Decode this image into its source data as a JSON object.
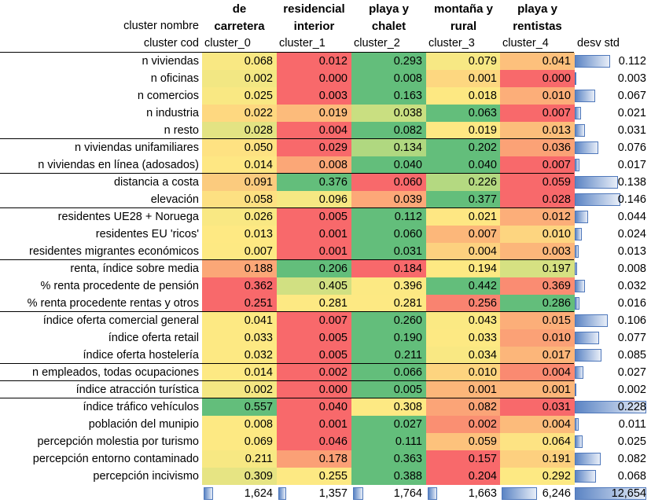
{
  "header": {
    "nombre_label": "cluster nombre",
    "cod_label": "cluster cod",
    "std_label": "desv std"
  },
  "clusters": [
    {
      "name_line1": "de",
      "name_line2": "carretera",
      "code": "cluster_0",
      "count": "1,624"
    },
    {
      "name_line1": "residencial",
      "name_line2": "interior",
      "code": "cluster_1",
      "count": "1,357"
    },
    {
      "name_line1": "playa y",
      "name_line2": "chalet",
      "code": "cluster_2",
      "count": "1,764"
    },
    {
      "name_line1": "montaña y",
      "name_line2": "rural",
      "code": "cluster_3",
      "count": "1,663"
    },
    {
      "name_line1": "playa y",
      "name_line2": "rentistas",
      "code": "cluster_4",
      "count": "6,246"
    }
  ],
  "total_count": "12,654",
  "rows": [
    {
      "label": "n viviendas",
      "values": [
        "0.068",
        "0.012",
        "0.293",
        "0.079",
        "0.041"
      ],
      "colors": [
        "#f9e883",
        "#f8696b",
        "#63be7b",
        "#f7e884",
        "#fdc07c"
      ],
      "std": "0.112",
      "std_frac": 0.49
    },
    {
      "label": "n oficinas",
      "values": [
        "0.002",
        "0.000",
        "0.008",
        "0.001",
        "0.000"
      ],
      "colors": [
        "#f2e783",
        "#f8696b",
        "#63be7b",
        "#fdd780",
        "#f8696b"
      ],
      "std": "0.003",
      "std_frac": 0.01
    },
    {
      "label": "n comercios",
      "values": [
        "0.025",
        "0.003",
        "0.163",
        "0.018",
        "0.010"
      ],
      "colors": [
        "#f9e883",
        "#f8696b",
        "#63be7b",
        "#fde882",
        "#fcae79"
      ],
      "std": "0.067",
      "std_frac": 0.29
    },
    {
      "label": "n industria",
      "values": [
        "0.022",
        "0.019",
        "0.038",
        "0.063",
        "0.007"
      ],
      "colors": [
        "#fed880",
        "#fcbb7b",
        "#c9df81",
        "#63be7b",
        "#f8696b"
      ],
      "std": "0.021",
      "std_frac": 0.09
    },
    {
      "label": "n resto",
      "values": [
        "0.028",
        "0.004",
        "0.082",
        "0.019",
        "0.013"
      ],
      "colors": [
        "#e3e383",
        "#f8696b",
        "#63be7b",
        "#fee883",
        "#fcbe7b"
      ],
      "std": "0.031",
      "std_frac": 0.14
    },
    {
      "label": "n viviendas unifamiliares",
      "values": [
        "0.050",
        "0.029",
        "0.134",
        "0.202",
        "0.036"
      ],
      "colors": [
        "#fee282",
        "#f8696b",
        "#b0d880",
        "#63be7b",
        "#fba276"
      ],
      "std": "0.076",
      "std_frac": 0.33
    },
    {
      "label": "n viviendas en línea (adosados)",
      "values": [
        "0.014",
        "0.008",
        "0.040",
        "0.040",
        "0.007"
      ],
      "colors": [
        "#fee783",
        "#fba777",
        "#63be7b",
        "#63be7b",
        "#f8696b"
      ],
      "std": "0.017",
      "std_frac": 0.07
    },
    {
      "label": "distancia a costa",
      "values": [
        "0.091",
        "0.376",
        "0.060",
        "0.226",
        "0.059"
      ],
      "colors": [
        "#fbcb7e",
        "#63be7b",
        "#f8696b",
        "#b4d981",
        "#f8696b"
      ],
      "std": "0.138",
      "std_frac": 0.6
    },
    {
      "label": "elevación",
      "values": [
        "0.058",
        "0.096",
        "0.039",
        "0.377",
        "0.028"
      ],
      "colors": [
        "#fde082",
        "#f6e883",
        "#fda878",
        "#63be7b",
        "#f8696b"
      ],
      "std": "0.146",
      "std_frac": 0.64
    },
    {
      "label": "residentes UE28 + Noruega",
      "values": [
        "0.026",
        "0.005",
        "0.112",
        "0.021",
        "0.012"
      ],
      "colors": [
        "#f9e883",
        "#f8696b",
        "#63be7b",
        "#fee783",
        "#fcae79"
      ],
      "std": "0.044",
      "std_frac": 0.19
    },
    {
      "label": "residentes EU 'ricos'",
      "values": [
        "0.013",
        "0.001",
        "0.060",
        "0.007",
        "0.010"
      ],
      "colors": [
        "#fee983",
        "#f8696b",
        "#63be7b",
        "#fcb77a",
        "#fdd580"
      ],
      "std": "0.024",
      "std_frac": 0.1
    },
    {
      "label": "residentes migrantes económicos",
      "values": [
        "0.007",
        "0.001",
        "0.031",
        "0.004",
        "0.003"
      ],
      "colors": [
        "#fde983",
        "#f8696b",
        "#63be7b",
        "#fdd17f",
        "#fcb67a"
      ],
      "std": "0.013",
      "std_frac": 0.06
    },
    {
      "label": "renta, índice sobre media",
      "values": [
        "0.188",
        "0.206",
        "0.184",
        "0.194",
        "0.197"
      ],
      "colors": [
        "#fba777",
        "#63be7b",
        "#f8696b",
        "#fde983",
        "#d6e182"
      ],
      "std": "0.008",
      "std_frac": 0.03
    },
    {
      "label": "% renta procedente de pensión",
      "values": [
        "0.362",
        "0.405",
        "0.396",
        "0.442",
        "0.369"
      ],
      "colors": [
        "#f8696b",
        "#d1e082",
        "#fce983",
        "#63be7b",
        "#fa8c72"
      ],
      "std": "0.032",
      "std_frac": 0.14
    },
    {
      "label": "% renta procedente rentas y otros",
      "values": [
        "0.251",
        "0.281",
        "0.281",
        "0.256",
        "0.286"
      ],
      "colors": [
        "#f8696b",
        "#fde983",
        "#fde983",
        "#f98370",
        "#63be7b"
      ],
      "std": "0.016",
      "std_frac": 0.07
    },
    {
      "label": "índice oferta comercial general",
      "values": [
        "0.041",
        "0.007",
        "0.260",
        "0.043",
        "0.015"
      ],
      "colors": [
        "#fde983",
        "#f8696b",
        "#63be7b",
        "#fbe983",
        "#fcae79"
      ],
      "std": "0.106",
      "std_frac": 0.46
    },
    {
      "label": "índice oferta retail",
      "values": [
        "0.033",
        "0.005",
        "0.190",
        "0.033",
        "0.010"
      ],
      "colors": [
        "#fde983",
        "#f8696b",
        "#63be7b",
        "#fde983",
        "#fba176"
      ],
      "std": "0.077",
      "std_frac": 0.34
    },
    {
      "label": "índice oferta hostelería",
      "values": [
        "0.032",
        "0.005",
        "0.211",
        "0.034",
        "0.017"
      ],
      "colors": [
        "#fde983",
        "#f8696b",
        "#63be7b",
        "#f9e883",
        "#fcb67a"
      ],
      "std": "0.085",
      "std_frac": 0.37
    },
    {
      "label": "n empleados, todas ocupaciones",
      "values": [
        "0.014",
        "0.002",
        "0.066",
        "0.010",
        "0.004"
      ],
      "colors": [
        "#fde983",
        "#f8696b",
        "#63be7b",
        "#fdd47f",
        "#fa8a71"
      ],
      "std": "0.027",
      "std_frac": 0.12
    },
    {
      "label": "índice atracción turística",
      "values": [
        "0.002",
        "0.000",
        "0.005",
        "0.001",
        "0.001"
      ],
      "colors": [
        "#f4e783",
        "#f8696b",
        "#63be7b",
        "#fcb67a",
        "#fcb67a"
      ],
      "std": "0.002",
      "std_frac": 0.01
    },
    {
      "label": "índice tráfico vehículos",
      "values": [
        "0.557",
        "0.040",
        "0.308",
        "0.082",
        "0.031"
      ],
      "colors": [
        "#63be7b",
        "#f8696b",
        "#fde983",
        "#fba477",
        "#f8696b"
      ],
      "std": "0.228",
      "std_frac": 1.0
    },
    {
      "label": "población del munipio",
      "values": [
        "0.008",
        "0.001",
        "0.027",
        "0.002",
        "0.004"
      ],
      "colors": [
        "#fde983",
        "#f8696b",
        "#63be7b",
        "#fa8f72",
        "#fcbb7b"
      ],
      "std": "0.011",
      "std_frac": 0.05
    },
    {
      "label": "percepción molestia por turismo",
      "values": [
        "0.069",
        "0.046",
        "0.111",
        "0.059",
        "0.064"
      ],
      "colors": [
        "#fde983",
        "#f8696b",
        "#63be7b",
        "#fdc27c",
        "#fde383"
      ],
      "std": "0.025",
      "std_frac": 0.11
    },
    {
      "label": "percepción entorno contaminado",
      "values": [
        "0.211",
        "0.178",
        "0.363",
        "0.157",
        "0.191"
      ],
      "colors": [
        "#f7e883",
        "#fba076",
        "#63be7b",
        "#f8696b",
        "#fdd07f"
      ],
      "std": "0.082",
      "std_frac": 0.36
    },
    {
      "label": "percepción incivismo",
      "values": [
        "0.309",
        "0.255",
        "0.388",
        "0.204",
        "0.292"
      ],
      "colors": [
        "#e6e483",
        "#fde983",
        "#63be7b",
        "#f8696b",
        "#fde983"
      ],
      "std": "0.068",
      "std_frac": 0.3
    }
  ],
  "separators_after_rows": [
    -1,
    4,
    6,
    8,
    11,
    14,
    17,
    18,
    19
  ]
}
